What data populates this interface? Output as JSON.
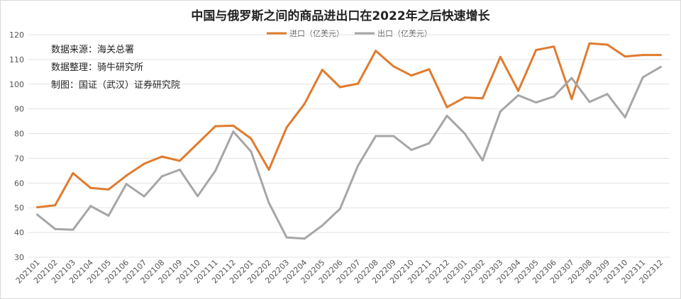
{
  "chart_data": {
    "type": "line",
    "title": "中国与俄罗斯之间的商品进出口在2022年之后快速增长",
    "categories": [
      "202101",
      "202102",
      "202103",
      "202104",
      "202105",
      "202106",
      "202107",
      "202108",
      "202109",
      "202110",
      "202111",
      "202112",
      "202201",
      "202202",
      "202203",
      "202204",
      "202205",
      "202206",
      "202207",
      "202208",
      "202209",
      "202210",
      "202211",
      "202212",
      "202301",
      "202302",
      "202303",
      "202304",
      "202305",
      "202306",
      "202307",
      "202308",
      "202309",
      "202310",
      "202311",
      "202312"
    ],
    "series": [
      {
        "name": "进口（亿美元）",
        "color": "#E07B2E",
        "values": [
          50.2,
          51.0,
          64.0,
          58.0,
          57.4,
          63.0,
          67.8,
          70.7,
          69.0,
          76.0,
          83.0,
          83.2,
          78.0,
          65.4,
          82.5,
          92.0,
          105.8,
          98.8,
          100.2,
          113.5,
          107.2,
          103.5,
          106.0,
          90.7,
          94.6,
          94.3,
          111.0,
          97.3,
          113.8,
          115.2,
          94.0,
          116.5,
          116.0,
          111.2,
          111.8,
          111.8
        ]
      },
      {
        "name": "出口（亿美元）",
        "color": "#A6A6A6",
        "values": [
          47.2,
          41.4,
          41.1,
          50.7,
          46.8,
          59.6,
          54.6,
          62.7,
          65.4,
          54.7,
          65.0,
          80.8,
          72.8,
          52.0,
          38.0,
          37.5,
          42.8,
          49.6,
          67.0,
          79.0,
          79.0,
          73.4,
          76.1,
          87.2,
          80.0,
          69.2,
          89.0,
          95.5,
          92.6,
          95.0,
          102.5,
          92.8,
          96.0,
          86.6,
          102.8,
          107.0
        ]
      }
    ],
    "ylim": [
      30,
      120
    ],
    "yticks": [
      "30",
      "40",
      "50",
      "60",
      "70",
      "80",
      "90",
      "100",
      "110",
      "120"
    ],
    "grid": true,
    "legend": "top-center"
  },
  "notes": [
    "数据来源：海关总署",
    "数据整理：骑牛研究所",
    "制图：国证（武汉）证券研究院"
  ]
}
